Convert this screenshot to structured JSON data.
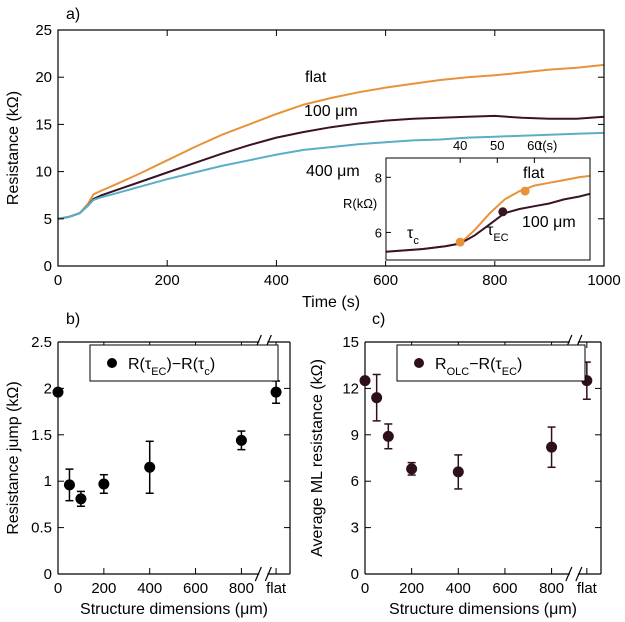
{
  "chart_data": [
    {
      "panel": "a)",
      "type": "line",
      "xlabel": "Time (s)",
      "ylabel": "Resistance (kΩ)",
      "xlim": [
        0,
        1000
      ],
      "ylim": [
        0,
        25
      ],
      "xticks": [
        "0",
        "200",
        "400",
        "600",
        "800",
        "1000"
      ],
      "yticks": [
        "0",
        "5",
        "10",
        "15",
        "20",
        "25"
      ],
      "series": [
        {
          "name": "flat",
          "color": "#e8923a",
          "x": [
            0,
            20,
            40,
            55,
            65,
            80,
            100,
            150,
            200,
            250,
            300,
            350,
            400,
            450,
            500,
            550,
            600,
            650,
            700,
            750,
            800,
            850,
            900,
            950,
            1000
          ],
          "y": [
            5.0,
            5.2,
            5.6,
            6.6,
            7.6,
            8.0,
            8.5,
            9.8,
            11.2,
            12.6,
            13.9,
            15.0,
            16.1,
            17.1,
            17.8,
            18.4,
            18.9,
            19.3,
            19.7,
            20.0,
            20.2,
            20.5,
            20.8,
            21.0,
            21.3
          ]
        },
        {
          "name": "100 μm",
          "color": "#3a1422",
          "x": [
            0,
            20,
            40,
            55,
            65,
            80,
            100,
            150,
            200,
            250,
            300,
            350,
            400,
            450,
            500,
            550,
            600,
            650,
            700,
            750,
            800,
            850,
            900,
            950,
            1000
          ],
          "y": [
            5.0,
            5.2,
            5.6,
            6.4,
            7.1,
            7.5,
            7.9,
            8.9,
            9.9,
            10.9,
            11.9,
            12.8,
            13.6,
            14.2,
            14.7,
            15.1,
            15.4,
            15.6,
            15.7,
            15.8,
            15.9,
            15.7,
            15.6,
            15.6,
            15.8
          ]
        },
        {
          "name": "400 μm",
          "color": "#5aaec8",
          "x": [
            0,
            20,
            40,
            55,
            65,
            80,
            100,
            150,
            200,
            250,
            300,
            350,
            400,
            450,
            500,
            550,
            600,
            650,
            700,
            750,
            800,
            850,
            900,
            950,
            1000
          ],
          "y": [
            5.0,
            5.2,
            5.6,
            6.4,
            7.0,
            7.3,
            7.6,
            8.4,
            9.2,
            9.9,
            10.6,
            11.2,
            11.8,
            12.3,
            12.6,
            12.9,
            13.1,
            13.3,
            13.4,
            13.6,
            13.7,
            13.8,
            13.9,
            14.0,
            14.1
          ]
        }
      ],
      "curve_labels": [
        "flat",
        "100 μm",
        "400 μm"
      ]
    },
    {
      "panel": "inset",
      "type": "line",
      "xlabel": "t(s)",
      "ylabel": "R(kΩ)",
      "xlim": [
        20,
        75
      ],
      "ylim": [
        5,
        8.7
      ],
      "xticks": [
        "40",
        "50",
        "60"
      ],
      "yticks": [
        "6",
        "8"
      ],
      "series": [
        {
          "name": "flat",
          "color": "#e8923a",
          "x": [
            20,
            30,
            36,
            40,
            44,
            48,
            52,
            56,
            60,
            64,
            68,
            72,
            75
          ],
          "y": [
            5.3,
            5.4,
            5.5,
            5.6,
            6.1,
            6.7,
            7.2,
            7.5,
            7.7,
            7.8,
            7.9,
            8.0,
            8.05
          ]
        },
        {
          "name": "100 μm",
          "color": "#3a1422",
          "x": [
            20,
            30,
            36,
            40,
            44,
            48,
            52,
            56,
            60,
            64,
            68,
            72,
            75
          ],
          "y": [
            5.3,
            5.4,
            5.5,
            5.6,
            5.9,
            6.3,
            6.7,
            6.85,
            6.95,
            7.05,
            7.2,
            7.3,
            7.4
          ]
        }
      ],
      "markers": [
        {
          "label": "τc",
          "x": 40,
          "y": 5.65,
          "color": "#e8923a"
        },
        {
          "label": "τEC",
          "x": 51.5,
          "y": 6.75,
          "color": "#3a1422"
        },
        {
          "label": "",
          "x": 57.5,
          "y": 7.5,
          "color": "#e8923a"
        }
      ],
      "text_labels": {
        "tau_c": "τ",
        "tau_c_sub": "c",
        "tau_ec": "τ",
        "tau_ec_sub": "EC",
        "flat": "flat",
        "um100": "100 μm"
      }
    },
    {
      "panel": "b)",
      "type": "scatter",
      "xlabel": "Structure dimensions (μm)",
      "ylabel": "Resistance jump (kΩ)",
      "xlim": [
        0,
        900
      ],
      "ylim": [
        0,
        2.5
      ],
      "xticks": [
        "0",
        "200",
        "400",
        "600",
        "800",
        "flat"
      ],
      "yticks": [
        "0",
        "0.5",
        "1",
        "1.5",
        "2",
        "2.5"
      ],
      "legend": {
        "main": "R(τ",
        "sub1": "EC",
        "mid": ")−R(τ",
        "sub2": "c",
        "end": ")"
      },
      "points": [
        {
          "x": 0,
          "y": 1.96,
          "err": 0.0
        },
        {
          "x": 50,
          "y": 0.96,
          "err": 0.17
        },
        {
          "x": 100,
          "y": 0.81,
          "err": 0.08
        },
        {
          "x": 200,
          "y": 0.97,
          "err": 0.1
        },
        {
          "x": 400,
          "y": 1.15,
          "err": 0.28
        },
        {
          "x": 800,
          "y": 1.44,
          "err": 0.1
        },
        {
          "x": "flat",
          "y": 1.96,
          "err": 0.12
        }
      ]
    },
    {
      "panel": "c)",
      "type": "scatter",
      "xlabel": "Structure dimensions (μm)",
      "ylabel": "Average ML resistance (kΩ)",
      "xlim": [
        0,
        900
      ],
      "ylim": [
        0,
        15
      ],
      "xticks": [
        "0",
        "200",
        "400",
        "600",
        "800",
        "flat"
      ],
      "yticks": [
        "0",
        "3",
        "6",
        "9",
        "12",
        "15"
      ],
      "legend": {
        "main": "R",
        "sub1": "OLC",
        "mid": "−R(τ",
        "sub2": "EC",
        "end": ")"
      },
      "points": [
        {
          "x": 0,
          "y": 12.5,
          "err": 0.0
        },
        {
          "x": 50,
          "y": 11.4,
          "err": 1.5
        },
        {
          "x": 100,
          "y": 8.9,
          "err": 0.8
        },
        {
          "x": 200,
          "y": 6.8,
          "err": 0.4
        },
        {
          "x": 400,
          "y": 6.6,
          "err": 1.1
        },
        {
          "x": 800,
          "y": 8.2,
          "err": 1.3
        },
        {
          "x": "flat",
          "y": 12.5,
          "err": 1.2
        }
      ]
    }
  ]
}
